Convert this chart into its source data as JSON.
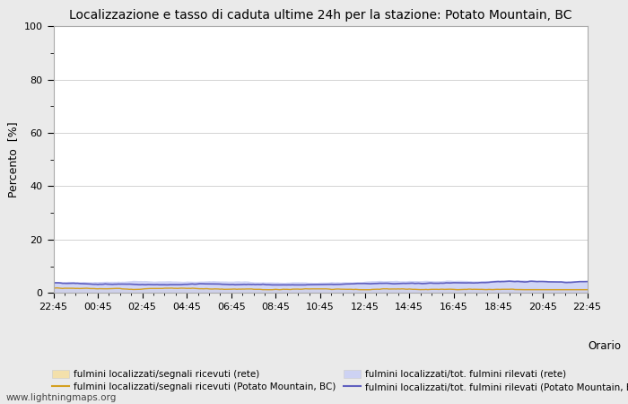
{
  "title": "Localizzazione e tasso di caduta ultime 24h per la stazione: Potato Mountain, BC",
  "ylabel_line1": "Percento",
  "ylabel_line2": "[%]",
  "xlabel": "Orario",
  "ylim": [
    0,
    100
  ],
  "yticks_major": [
    0,
    20,
    40,
    60,
    80,
    100
  ],
  "yticks_minor": [
    10,
    30,
    50,
    70,
    90
  ],
  "x_labels": [
    "22:45",
    "00:45",
    "02:45",
    "04:45",
    "06:45",
    "08:45",
    "10:45",
    "12:45",
    "14:45",
    "16:45",
    "18:45",
    "20:45",
    "22:45"
  ],
  "n_points": 289,
  "fill_color_1": "#f5dfa0",
  "fill_color_2": "#c8cef5",
  "line_color_1": "#d4a020",
  "line_color_2": "#6060c0",
  "fill_alpha_1": 0.85,
  "fill_alpha_2": 0.85,
  "background_color": "#eaeaea",
  "plot_bg_color": "#ffffff",
  "grid_color": "#cccccc",
  "legend_entries": [
    "fulmini localizzati/segnali ricevuti (rete)",
    "fulmini localizzati/segnali ricevuti (Potato Mountain, BC)",
    "fulmini localizzati/tot. fulmini rilevati (rete)",
    "fulmini localizzati/tot. fulmini rilevati (Potato Mountain, BC)"
  ],
  "watermark": "www.lightningmaps.org",
  "series1_base": 2.0,
  "series2_base": 4.2,
  "series3_base": 1.8,
  "series4_base": 3.8
}
